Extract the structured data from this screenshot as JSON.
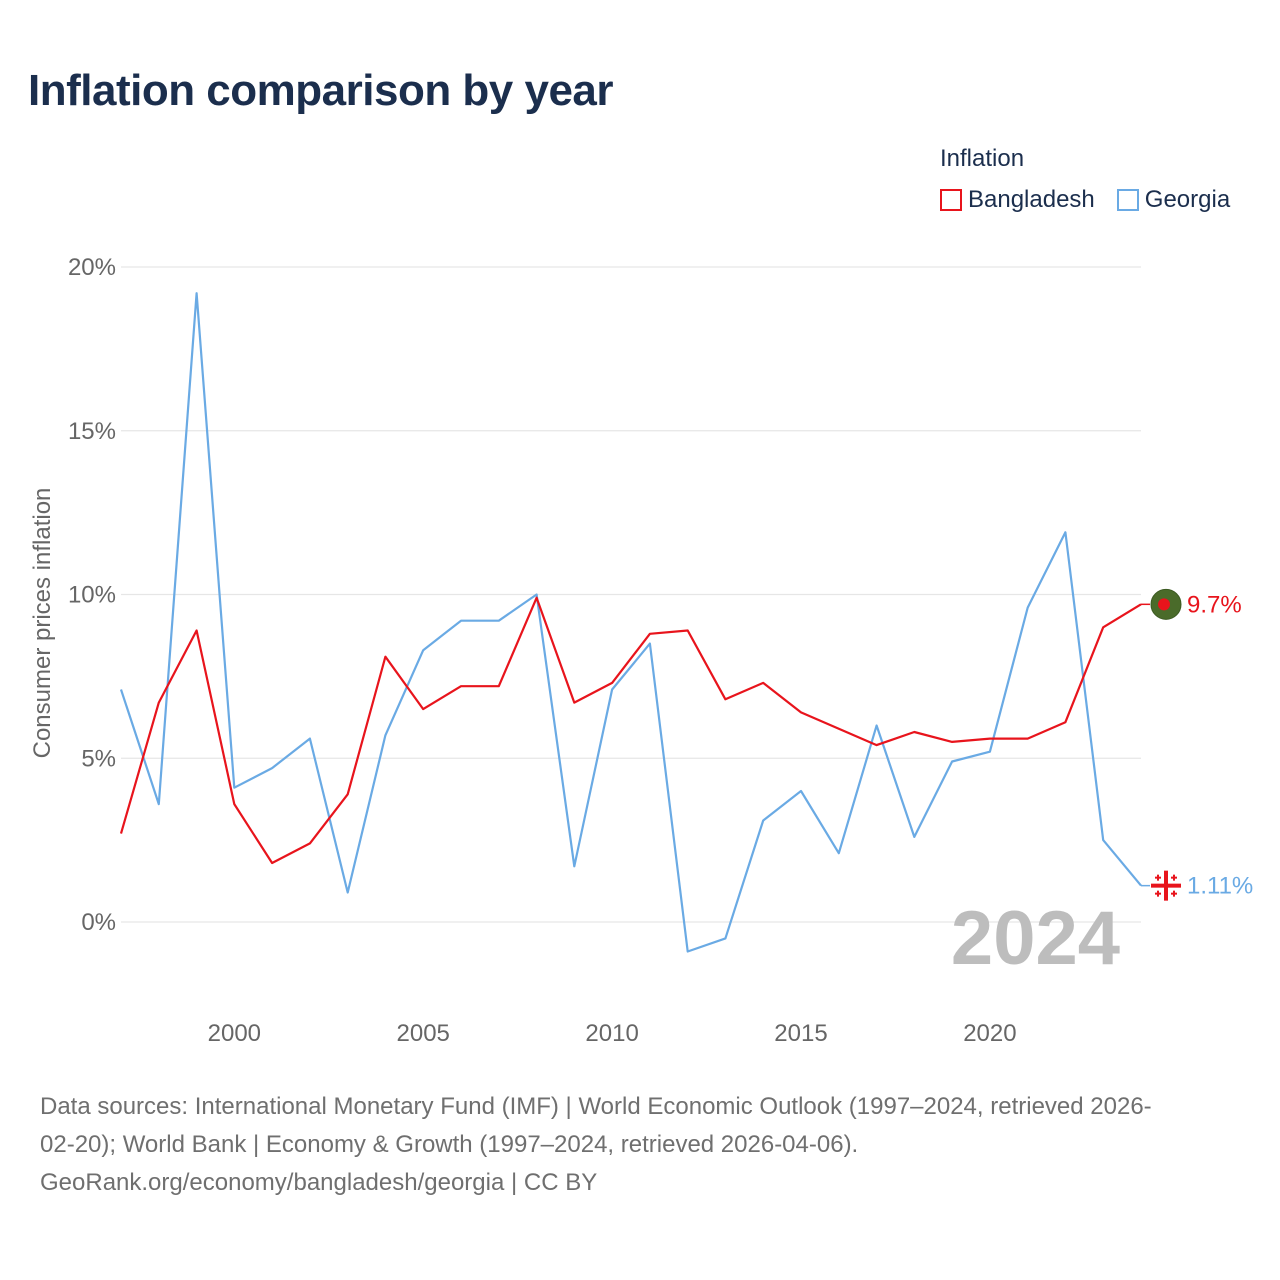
{
  "title": "Inflation comparison by year",
  "legend": {
    "title": "Inflation",
    "items": [
      {
        "name": "Bangladesh",
        "color": "#e8141c"
      },
      {
        "name": "Georgia",
        "color": "#6aaae4"
      }
    ]
  },
  "chart_data": {
    "type": "line",
    "ylabel": "Consumer prices inflation",
    "xlabel": "",
    "ylim": [
      -2.7,
      20
    ],
    "xlim": [
      1997,
      2024
    ],
    "y_ticks": [
      0,
      5,
      10,
      15,
      20
    ],
    "y_tick_labels": [
      "0%",
      "5%",
      "10%",
      "15%",
      "20%"
    ],
    "x_ticks": [
      2000,
      2005,
      2010,
      2015,
      2020
    ],
    "x_tick_labels": [
      "2000",
      "2005",
      "2010",
      "2015",
      "2020"
    ],
    "grid": true,
    "x": [
      1997,
      1998,
      1999,
      2000,
      2001,
      2002,
      2003,
      2004,
      2005,
      2006,
      2007,
      2008,
      2009,
      2010,
      2011,
      2012,
      2013,
      2014,
      2015,
      2016,
      2017,
      2018,
      2019,
      2020,
      2021,
      2022,
      2023,
      2024
    ],
    "series": [
      {
        "name": "Bangladesh",
        "color": "#e8141c",
        "values": [
          2.7,
          6.7,
          8.9,
          3.6,
          1.8,
          2.4,
          3.9,
          8.1,
          6.5,
          7.2,
          7.2,
          9.9,
          6.7,
          7.3,
          8.8,
          8.9,
          6.8,
          7.3,
          6.4,
          5.9,
          5.4,
          5.8,
          5.5,
          5.6,
          5.6,
          6.1,
          9.0,
          9.7
        ],
        "end_label": "9.7%"
      },
      {
        "name": "Georgia",
        "color": "#6aaae4",
        "values": [
          7.1,
          3.6,
          19.2,
          4.1,
          4.7,
          5.6,
          0.9,
          5.7,
          8.3,
          9.2,
          9.2,
          10.0,
          1.7,
          7.1,
          8.5,
          -0.9,
          -0.5,
          3.1,
          4.0,
          2.1,
          6.0,
          2.6,
          4.9,
          5.2,
          9.6,
          11.9,
          2.5,
          1.11
        ],
        "end_label": "1.11%"
      }
    ],
    "year_watermark": "2024"
  },
  "footer": {
    "line1": "Data sources: International Monetary Fund (IMF) | World Economic Outlook (1997–2024, retrieved 2026-",
    "line2": "02-20); World Bank | Economy & Growth (1997–2024, retrieved 2026-04-06).",
    "line3": "GeoRank.org/economy/bangladesh/georgia | CC BY"
  }
}
